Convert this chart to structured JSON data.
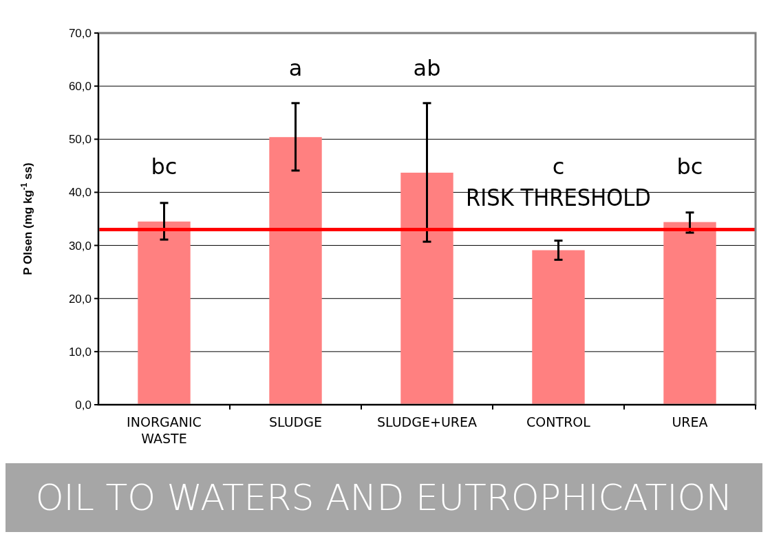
{
  "chart_data": {
    "type": "bar",
    "ylabel": "P Olsen (mg kg$^{-1}$ ss)",
    "categories": [
      "INORGANIC WASTE",
      "SLUDGE",
      "SLUDGE+UREA",
      "CONTROL",
      "UREA"
    ],
    "values": [
      34.5,
      50.4,
      43.7,
      29.1,
      34.4
    ],
    "errors": [
      [
        31.1,
        38.0
      ],
      [
        44.1,
        56.8
      ],
      [
        30.7,
        56.8
      ],
      [
        27.3,
        30.9
      ],
      [
        32.4,
        36.2
      ]
    ],
    "color": "#ff8080",
    "ylim": [
      0,
      70
    ],
    "yticks": [
      {
        "value": 0,
        "label": "0,0"
      },
      {
        "value": 10,
        "label": "10,0"
      },
      {
        "value": 20,
        "label": "20,0"
      },
      {
        "value": 30,
        "label": "30,0"
      },
      {
        "value": 40,
        "label": "40,0"
      },
      {
        "value": 50,
        "label": "50,0"
      },
      {
        "value": 60,
        "label": "60,0"
      },
      {
        "value": 70,
        "label": "70,0"
      }
    ],
    "grid": "y",
    "ref_lines": [
      {
        "axis": "y",
        "value": 33,
        "label": "RISK THRESHOLD",
        "color": "#ff0000"
      }
    ],
    "annotations": [
      "bc",
      "a",
      "ab",
      "c",
      "bc",
      "OIL TO WATERS AND EUTROPHICATION"
    ]
  }
}
